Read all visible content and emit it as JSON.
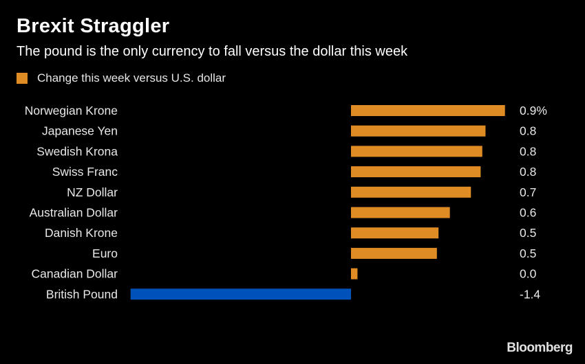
{
  "chart_data": {
    "type": "bar",
    "orientation": "horizontal",
    "title": "Brexit Straggler",
    "subtitle": "The pound is the only currency to fall versus the dollar this week",
    "legend": {
      "label": "Change this week versus U.S. dollar",
      "color": "#e08c25",
      "placement": "top-left"
    },
    "categories": [
      "Norwegian Krone",
      "Japanese Yen",
      "Swedish Krona",
      "Swiss Franc",
      "NZ Dollar",
      "Australian Dollar",
      "Danish Krone",
      "Euro",
      "Canadian Dollar",
      "British Pound"
    ],
    "values": [
      0.95,
      0.83,
      0.81,
      0.8,
      0.74,
      0.61,
      0.54,
      0.53,
      0.04,
      -1.36
    ],
    "data_labels": [
      "0.9%",
      "0.8",
      "0.8",
      "0.8",
      "0.7",
      "0.6",
      "0.5",
      "0.5",
      "0.0",
      "-1.4"
    ],
    "colors": {
      "positive": "#e08c25",
      "negative": "#0052bb"
    },
    "unit": "%",
    "grid": false
  },
  "source_logo": "Bloomberg"
}
